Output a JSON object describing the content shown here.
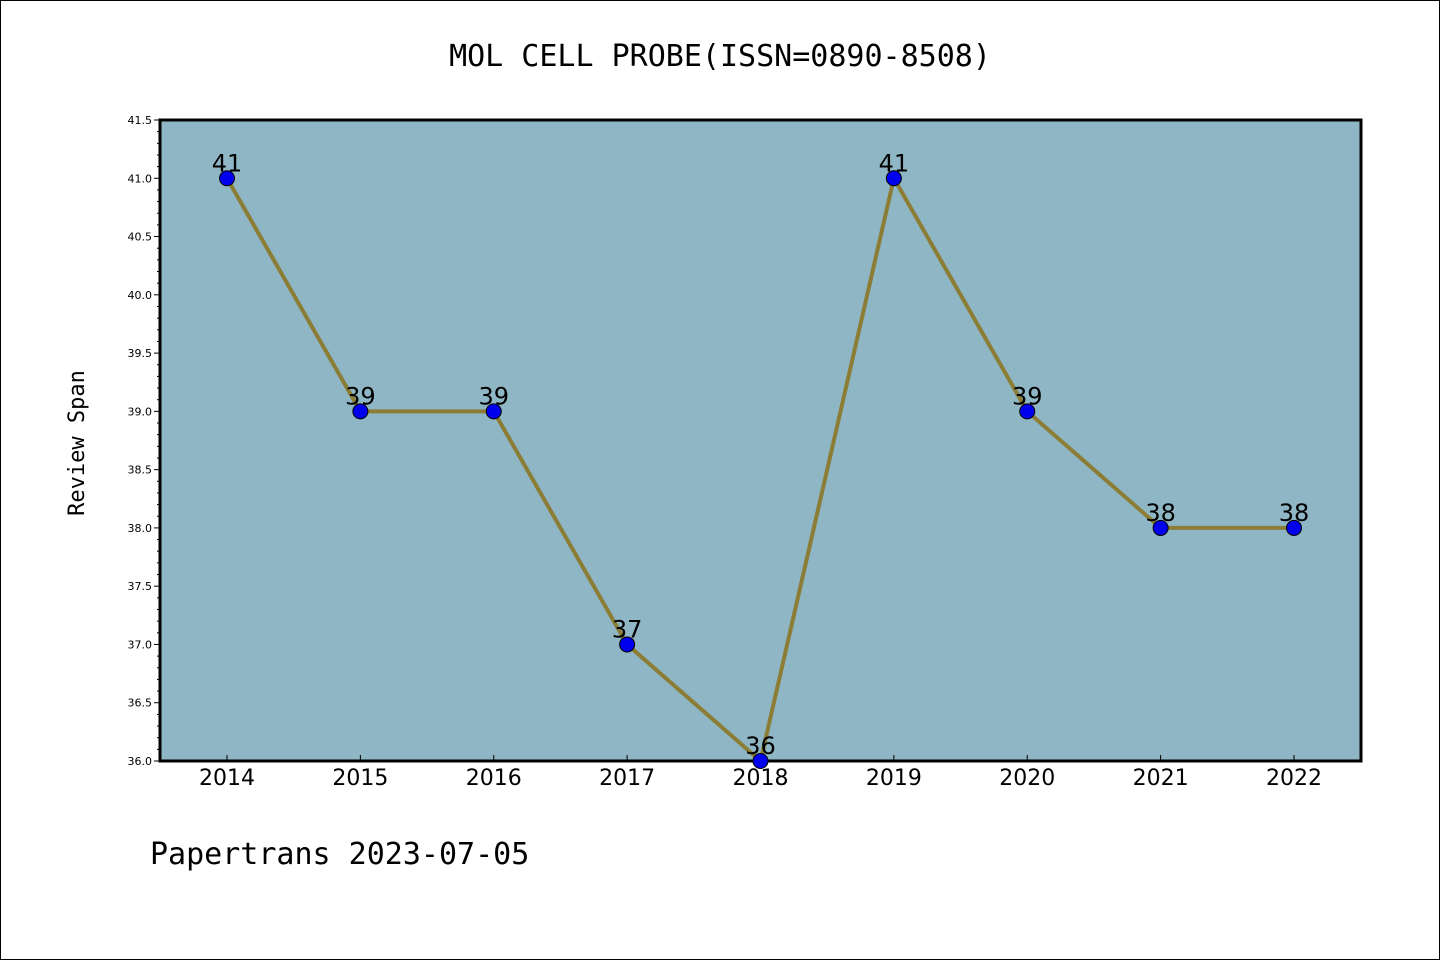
{
  "chart_data": {
    "type": "line",
    "title": "MOL CELL PROBE(ISSN=0890-8508)",
    "xlabel": "",
    "ylabel": "Review Span",
    "categories": [
      "2014",
      "2015",
      "2016",
      "2017",
      "2018",
      "2019",
      "2020",
      "2021",
      "2022"
    ],
    "series": [
      {
        "values": [
          41,
          39,
          39,
          37,
          36,
          41,
          39,
          38,
          38
        ]
      }
    ],
    "data_labels": [
      "41",
      "39",
      "39",
      "37",
      "36",
      "41",
      "39",
      "38",
      "38"
    ],
    "yticks": [
      "36.0",
      "36.5",
      "37.0",
      "37.5",
      "38.0",
      "38.5",
      "39.0",
      "39.5",
      "40.0",
      "40.5",
      "41.0",
      "41.5"
    ],
    "ylim": [
      36.0,
      41.5
    ],
    "grid": false,
    "colors": {
      "plot_background": "#8fb6c4",
      "line": "#8b7d35",
      "marker": "#0000ee"
    }
  },
  "footer": "Papertrans 2023-07-05"
}
